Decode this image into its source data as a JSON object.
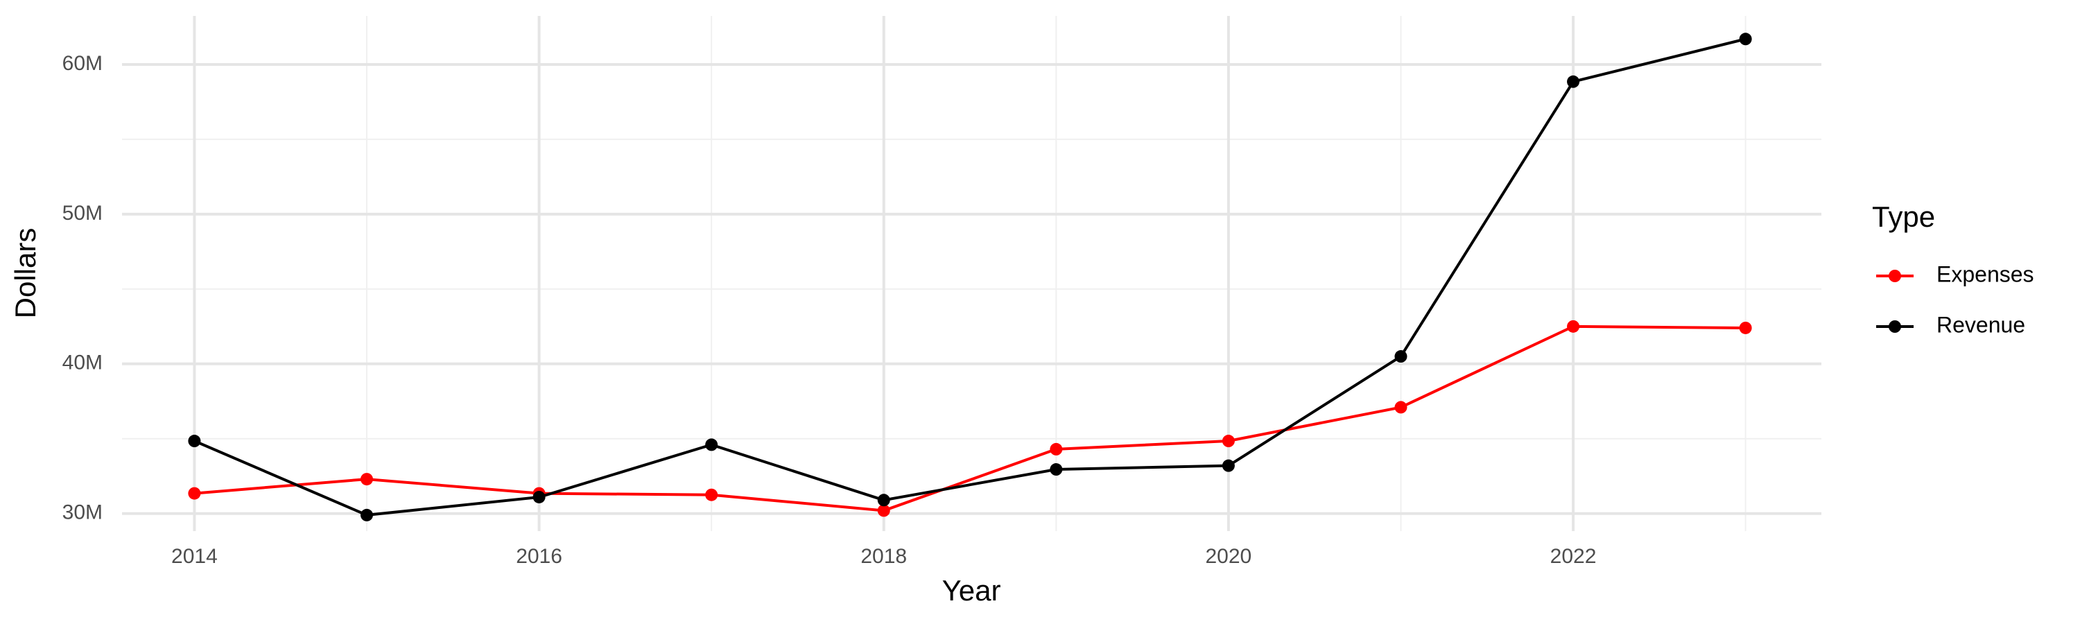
{
  "chart_data": {
    "type": "line",
    "x_label": "Year",
    "y_label": "Dollars",
    "legend_title": "Type",
    "x": [
      2014,
      2015,
      2016,
      2017,
      2018,
      2019,
      2020,
      2021,
      2022,
      2023
    ],
    "series": [
      {
        "name": "Expenses",
        "color": "#ff0000",
        "values": [
          31350000,
          32300000,
          31350000,
          31250000,
          30200000,
          34300000,
          34850000,
          37100000,
          42500000,
          42400000
        ]
      },
      {
        "name": "Revenue",
        "color": "#000000",
        "values": [
          34850000,
          29900000,
          31100000,
          34600000,
          30900000,
          32950000,
          33200000,
          40500000,
          58850000,
          61700000
        ]
      }
    ],
    "xlim": [
      2013.58,
      2023.44
    ],
    "ylim": [
      28830000,
      63240000
    ],
    "xticks": [
      2014,
      2016,
      2018,
      2020,
      2022
    ],
    "yticks": [
      {
        "value": 30000000,
        "label": "30M"
      },
      {
        "value": 40000000,
        "label": "40M"
      },
      {
        "value": 50000000,
        "label": "50M"
      },
      {
        "value": 60000000,
        "label": "60M"
      }
    ],
    "minor_xticks": [
      2015,
      2017,
      2019,
      2021,
      2023
    ],
    "minor_yticks": [
      35000000,
      45000000,
      55000000
    ],
    "grid": true,
    "legend_position": "right"
  }
}
